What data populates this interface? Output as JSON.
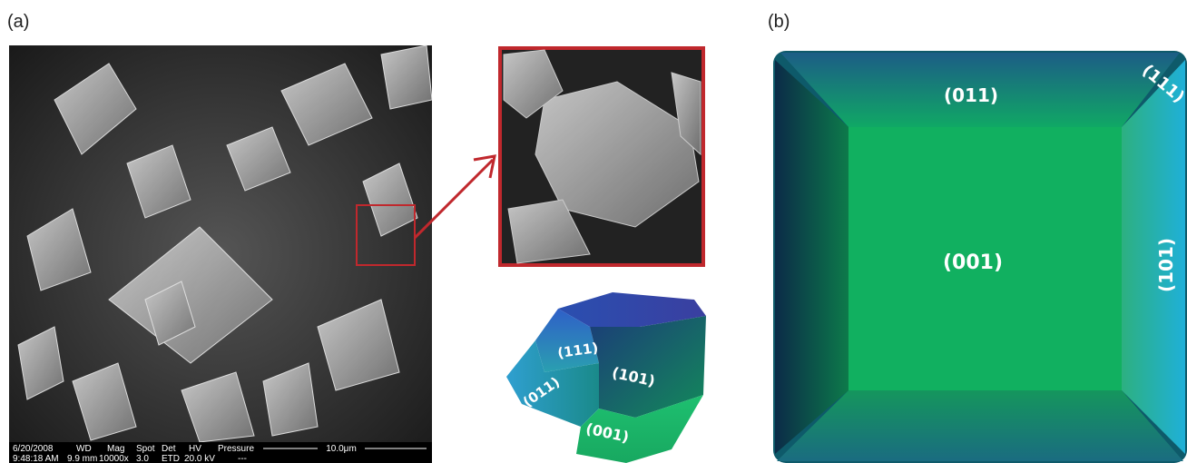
{
  "panels": [
    {
      "label": "(a)",
      "sem_info": {
        "date": "6/20/2008",
        "time": "9:48:18 AM",
        "headers": [
          "WD",
          "Mag",
          "Spot",
          "Det",
          "HV",
          "Pressure"
        ],
        "values": [
          "9.9 mm",
          "10000x",
          "3.0",
          "ETD",
          "20.0 kV",
          "---"
        ],
        "scale_bar": "10.0μm"
      },
      "crystal_faces": [
        "(111)",
        "(101)",
        "(011)",
        "(001)"
      ]
    },
    {
      "label": "(b)",
      "faces": [
        "(011)",
        "(111)",
        "(001)",
        "(101)"
      ]
    }
  ]
}
